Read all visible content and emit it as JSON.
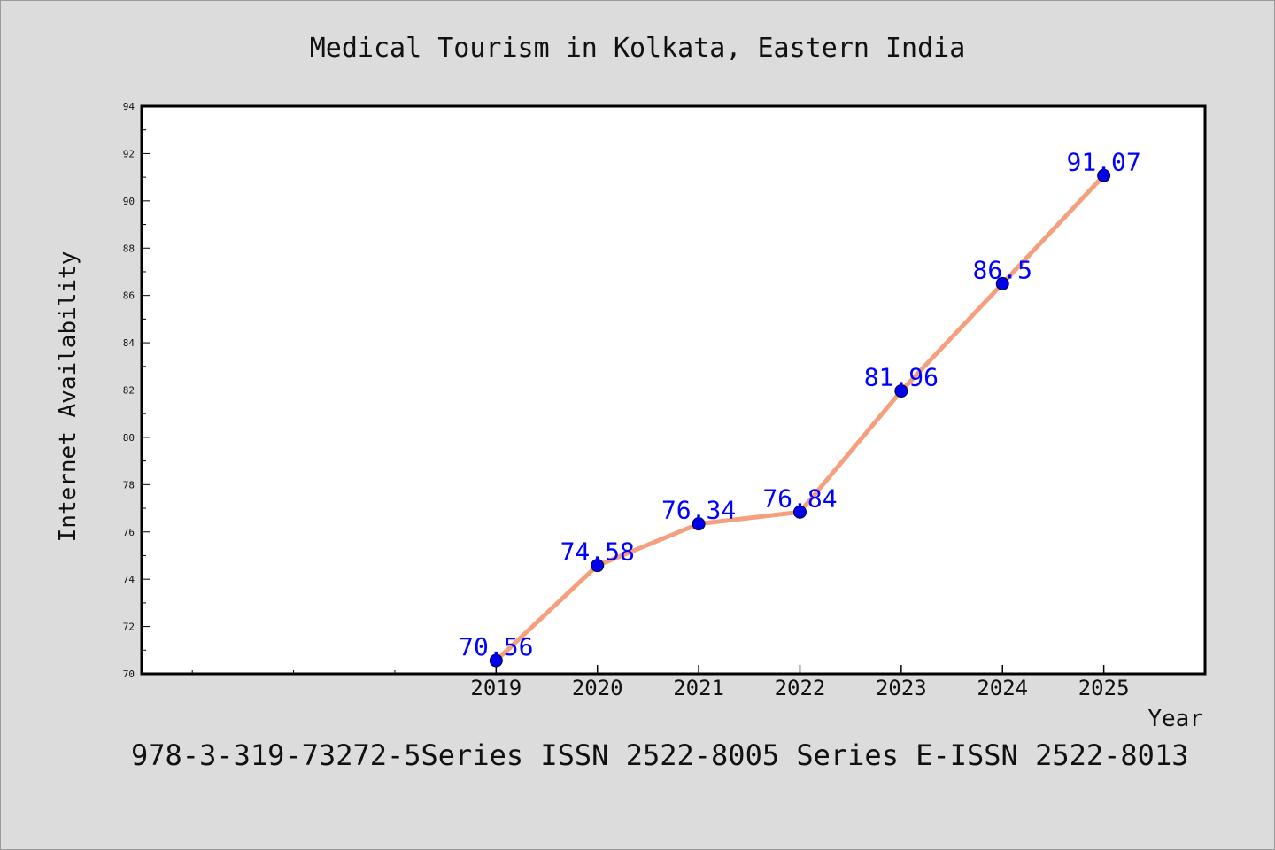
{
  "chart_data": {
    "type": "line",
    "title": "Medical Tourism in Kolkata, Eastern India",
    "xlabel": "Year",
    "ylabel": "Internet Availability",
    "x": [
      2019,
      2020,
      2021,
      2022,
      2023,
      2024,
      2025
    ],
    "xlim": [
      2015.5,
      2026.0
    ],
    "ylim": [
      70,
      94
    ],
    "yticks": [
      70,
      72,
      74,
      76,
      78,
      80,
      82,
      84,
      86,
      88,
      90,
      92,
      94
    ],
    "series": [
      {
        "values": [
          70.56,
          74.58,
          76.34,
          76.84,
          81.96,
          86.5,
          91.07
        ],
        "labels": [
          "70.56",
          "74.58",
          "76.34",
          "76.84",
          "81.96",
          "86.5",
          "91.07"
        ],
        "line_color": "#f4a07e",
        "marker_color": "#0000ee"
      }
    ],
    "grid": false,
    "legend": "none"
  },
  "footer": "978-3-319-73272-5Series ISSN 2522-8005 Series E-ISSN 2522-8013"
}
